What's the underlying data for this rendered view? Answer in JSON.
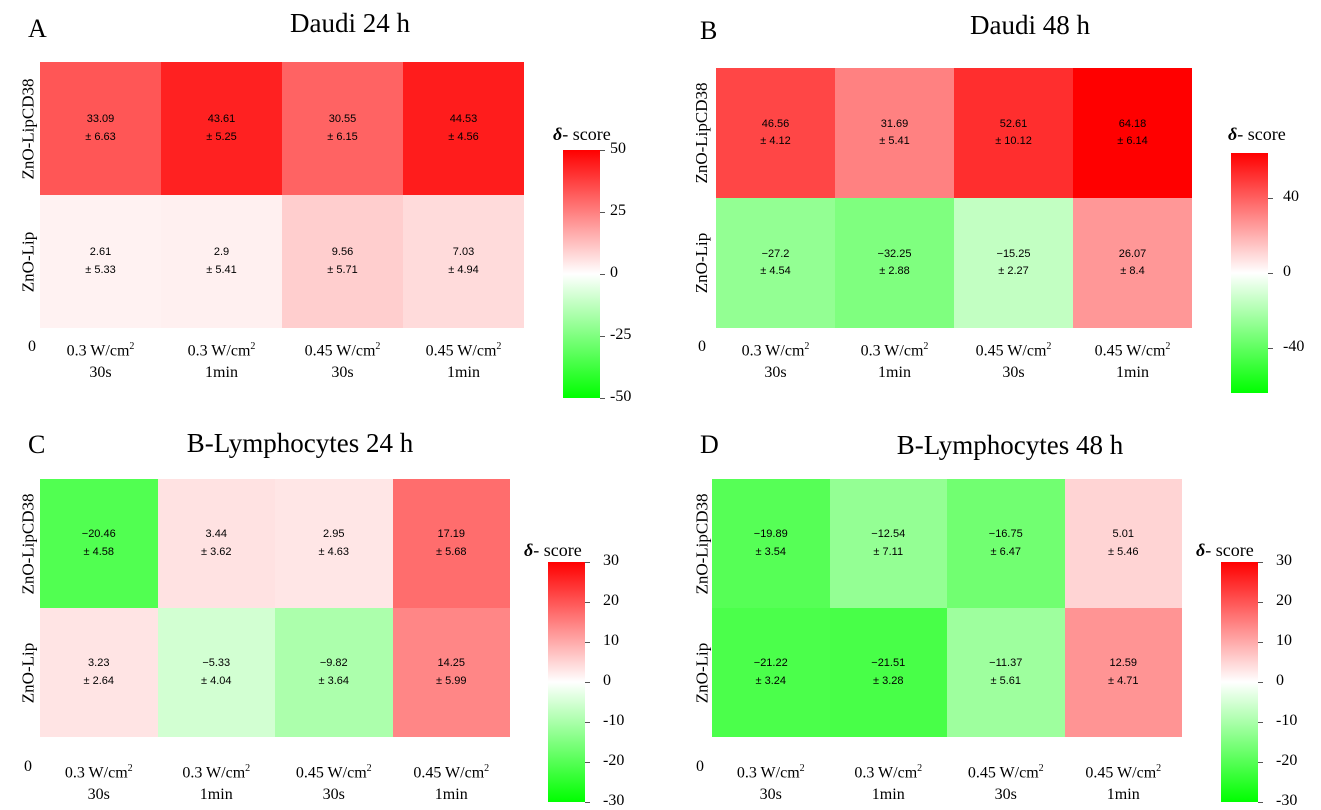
{
  "chart_data": [
    {
      "type": "heatmap",
      "letter": "A",
      "title": "Daudi 24 h",
      "rows": [
        "ZnO-LipCD38",
        "ZnO-Lip"
      ],
      "cols": [
        [
          "0.3 W/cm",
          "2",
          "30s"
        ],
        [
          "0.3 W/cm",
          "2",
          "1min"
        ],
        [
          "0.45 W/cm",
          "2",
          "30s"
        ],
        [
          "0.45 W/cm",
          "2",
          "1min"
        ]
      ],
      "values": [
        [
          33.09,
          43.61,
          30.55,
          44.53
        ],
        [
          2.61,
          2.9,
          9.56,
          7.03
        ]
      ],
      "errors": [
        [
          "± 6.63",
          "± 5.25",
          "± 6.15",
          "± 4.56"
        ],
        [
          "± 5.33",
          "± 5.41",
          "± 5.71",
          "± 4.94"
        ]
      ],
      "value_labels": [
        [
          "33.09",
          "43.61",
          "30.55",
          "44.53"
        ],
        [
          "2.61",
          "2.9",
          "9.56",
          "7.03"
        ]
      ],
      "zero_label": "0",
      "colorbar_title_symbol": "δ",
      "colorbar_title_text": "- score",
      "range": [
        -50,
        50
      ],
      "colorbar_ticks": [
        50,
        25,
        0,
        -25,
        -50
      ],
      "colorbar_tick_labels": [
        "50",
        "25",
        "0",
        "-25",
        "-50"
      ]
    },
    {
      "type": "heatmap",
      "letter": "B",
      "title": "Daudi 48 h",
      "rows": [
        "ZnO-LipCD38",
        "ZnO-Lip"
      ],
      "cols": [
        [
          "0.3 W/cm",
          "2",
          "30s"
        ],
        [
          "0.3 W/cm",
          "2",
          "1min"
        ],
        [
          "0.45 W/cm",
          "2",
          "30s"
        ],
        [
          "0.45 W/cm",
          "2",
          "1min"
        ]
      ],
      "values": [
        [
          46.56,
          31.69,
          52.61,
          64.18
        ],
        [
          -27.2,
          -32.25,
          -15.25,
          26.07
        ]
      ],
      "errors": [
        [
          "± 4.12",
          "± 5.41",
          "± 10.12",
          "± 6.14"
        ],
        [
          "± 4.54",
          "± 2.88",
          "± 2.27",
          "± 8.4"
        ]
      ],
      "value_labels": [
        [
          "46.56",
          "31.69",
          "52.61",
          "64.18"
        ],
        [
          "−27.2",
          "−32.25",
          "−15.25",
          "26.07"
        ]
      ],
      "zero_label": "0",
      "colorbar_title_symbol": "δ",
      "colorbar_title_text": "- score",
      "range": [
        -64.18,
        64.18
      ],
      "colorbar_ticks": [
        40,
        0,
        -40
      ],
      "colorbar_tick_labels": [
        "40",
        "0",
        "-40"
      ]
    },
    {
      "type": "heatmap",
      "letter": "C",
      "title": "B-Lymphocytes 24 h",
      "rows": [
        "ZnO-LipCD38",
        "ZnO-Lip"
      ],
      "cols": [
        [
          "0.3 W/cm",
          "2",
          "30s"
        ],
        [
          "0.3 W/cm",
          "2",
          "1min"
        ],
        [
          "0.45 W/cm",
          "2",
          "30s"
        ],
        [
          "0.45 W/cm",
          "2",
          "1min"
        ]
      ],
      "values": [
        [
          -20.46,
          3.44,
          2.95,
          17.19
        ],
        [
          3.23,
          -5.33,
          -9.82,
          14.25
        ]
      ],
      "errors": [
        [
          "± 4.58",
          "± 3.62",
          "± 4.63",
          "± 5.68"
        ],
        [
          "± 2.64",
          "± 4.04",
          "± 3.64",
          "± 5.99"
        ]
      ],
      "value_labels": [
        [
          "−20.46",
          "3.44",
          "2.95",
          "17.19"
        ],
        [
          "3.23",
          "−5.33",
          "−9.82",
          "14.25"
        ]
      ],
      "zero_label": "0",
      "colorbar_title_symbol": "δ",
      "colorbar_title_text": "- score",
      "range": [
        -30,
        30
      ],
      "colorbar_ticks": [
        30,
        20,
        10,
        0,
        -10,
        -20,
        -30
      ],
      "colorbar_tick_labels": [
        "30",
        "20",
        "10",
        "0",
        "-10",
        "-20",
        "-30"
      ]
    },
    {
      "type": "heatmap",
      "letter": "D",
      "title": "B-Lymphocytes 48 h",
      "rows": [
        "ZnO-LipCD38",
        "ZnO-Lip"
      ],
      "cols": [
        [
          "0.3 W/cm",
          "2",
          "30s"
        ],
        [
          "0.3 W/cm",
          "2",
          "1min"
        ],
        [
          "0.45 W/cm",
          "2",
          "30s"
        ],
        [
          "0.45 W/cm",
          "2",
          "1min"
        ]
      ],
      "values": [
        [
          -19.89,
          -12.54,
          -16.75,
          5.01
        ],
        [
          -21.22,
          -21.51,
          -11.37,
          12.59
        ]
      ],
      "errors": [
        [
          "± 3.54",
          "± 7.11",
          "± 6.47",
          "± 5.46"
        ],
        [
          "± 3.24",
          "± 3.28",
          "± 5.61",
          "± 4.71"
        ]
      ],
      "value_labels": [
        [
          "−19.89",
          "−12.54",
          "−16.75",
          "5.01"
        ],
        [
          "−21.22",
          "−21.51",
          "−11.37",
          "12.59"
        ]
      ],
      "zero_label": "0",
      "colorbar_title_symbol": "δ",
      "colorbar_title_text": "- score",
      "range": [
        -21.51,
        30
      ],
      "colorbar_range": [
        -30,
        30
      ],
      "colorbar_ticks": [
        30,
        20,
        10,
        0,
        -10,
        -20,
        -30
      ],
      "colorbar_tick_labels": [
        "30",
        "20",
        "10",
        "0",
        "-10",
        "-20",
        "-30"
      ]
    }
  ]
}
